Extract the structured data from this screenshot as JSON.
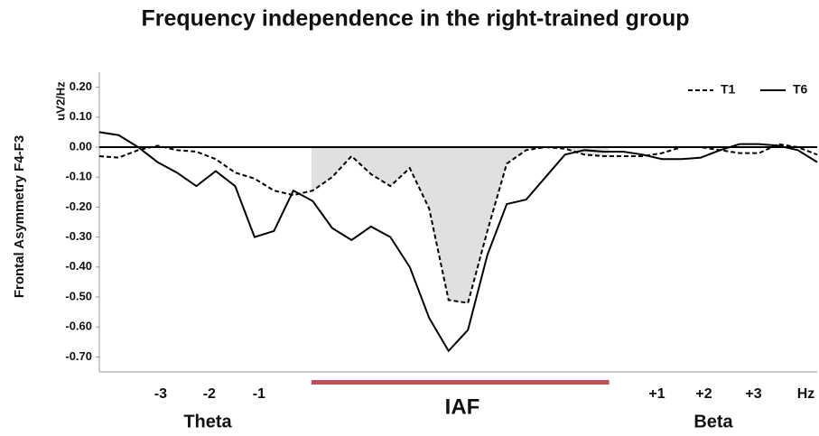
{
  "chart_data": {
    "type": "line",
    "title": "Frequency independence in the right-trained group",
    "y_label": "Frontal Asymmetry F4-F3",
    "y_unit": "uV2/Hz",
    "x": [
      0,
      1,
      2,
      3,
      4,
      5,
      6,
      7,
      8,
      9,
      10,
      11,
      12,
      13,
      14,
      15,
      16,
      17,
      18,
      19,
      20,
      21,
      22,
      23,
      24,
      25,
      26,
      27,
      28,
      29,
      30,
      31,
      32,
      33,
      34,
      35,
      36,
      37
    ],
    "xlim": [
      0,
      37
    ],
    "xticks": [
      {
        "value": 3.16,
        "label": "-3"
      },
      {
        "value": 5.67,
        "label": "-2"
      },
      {
        "value": 8.23,
        "label": "-1"
      },
      {
        "value": 28.74,
        "label": "+1"
      },
      {
        "value": 31.16,
        "label": "+2"
      },
      {
        "value": 33.72,
        "label": "+3"
      },
      {
        "value": 36.42,
        "label": "Hz"
      }
    ],
    "ylim": [
      -0.75,
      0.25
    ],
    "yticks": [
      {
        "value": 0.2,
        "label": "0.20"
      },
      {
        "value": 0.1,
        "label": "0.10"
      },
      {
        "value": 0,
        "label": "0.00"
      },
      {
        "value": -0.1,
        "label": "-0.10"
      },
      {
        "value": -0.2,
        "label": "-0.20"
      },
      {
        "value": -0.3,
        "label": "-0.30"
      },
      {
        "value": -0.4,
        "label": "-0.40"
      },
      {
        "value": -0.5,
        "label": "-0.50"
      },
      {
        "value": -0.6,
        "label": "-0.60"
      },
      {
        "value": -0.7,
        "label": "-0.70"
      }
    ],
    "band_labels": [
      "Theta",
      "IAF",
      "Beta"
    ],
    "iaf_range": [
      10.93,
      26.28
    ],
    "iaf_color": "#c0505a",
    "shade_color": "#e0e0e0",
    "legend": "top-right",
    "series": [
      {
        "name": "T1",
        "color": "#000000",
        "dash": true,
        "values": [
          -0.03,
          -0.035,
          -0.01,
          0.005,
          -0.01,
          -0.015,
          -0.04,
          -0.085,
          -0.105,
          -0.145,
          -0.16,
          -0.145,
          -0.1,
          -0.03,
          -0.09,
          -0.13,
          -0.07,
          -0.205,
          -0.51,
          -0.52,
          -0.28,
          -0.055,
          -0.01,
          0,
          -0.005,
          -0.025,
          -0.03,
          -0.03,
          -0.03,
          -0.02,
          0,
          0,
          -0.01,
          -0.02,
          -0.02,
          0.01,
          0,
          -0.025
        ]
      },
      {
        "name": "T6",
        "color": "#000000",
        "dash": false,
        "values": [
          0.05,
          0.04,
          0,
          -0.05,
          -0.085,
          -0.13,
          -0.08,
          -0.13,
          -0.3,
          -0.28,
          -0.145,
          -0.18,
          -0.27,
          -0.31,
          -0.265,
          -0.3,
          -0.4,
          -0.57,
          -0.68,
          -0.61,
          -0.36,
          -0.19,
          -0.175,
          -0.1,
          -0.025,
          -0.01,
          -0.015,
          -0.015,
          -0.025,
          -0.04,
          -0.04,
          -0.035,
          -0.01,
          0.01,
          0.01,
          0.005,
          -0.01,
          -0.05
        ]
      }
    ]
  }
}
